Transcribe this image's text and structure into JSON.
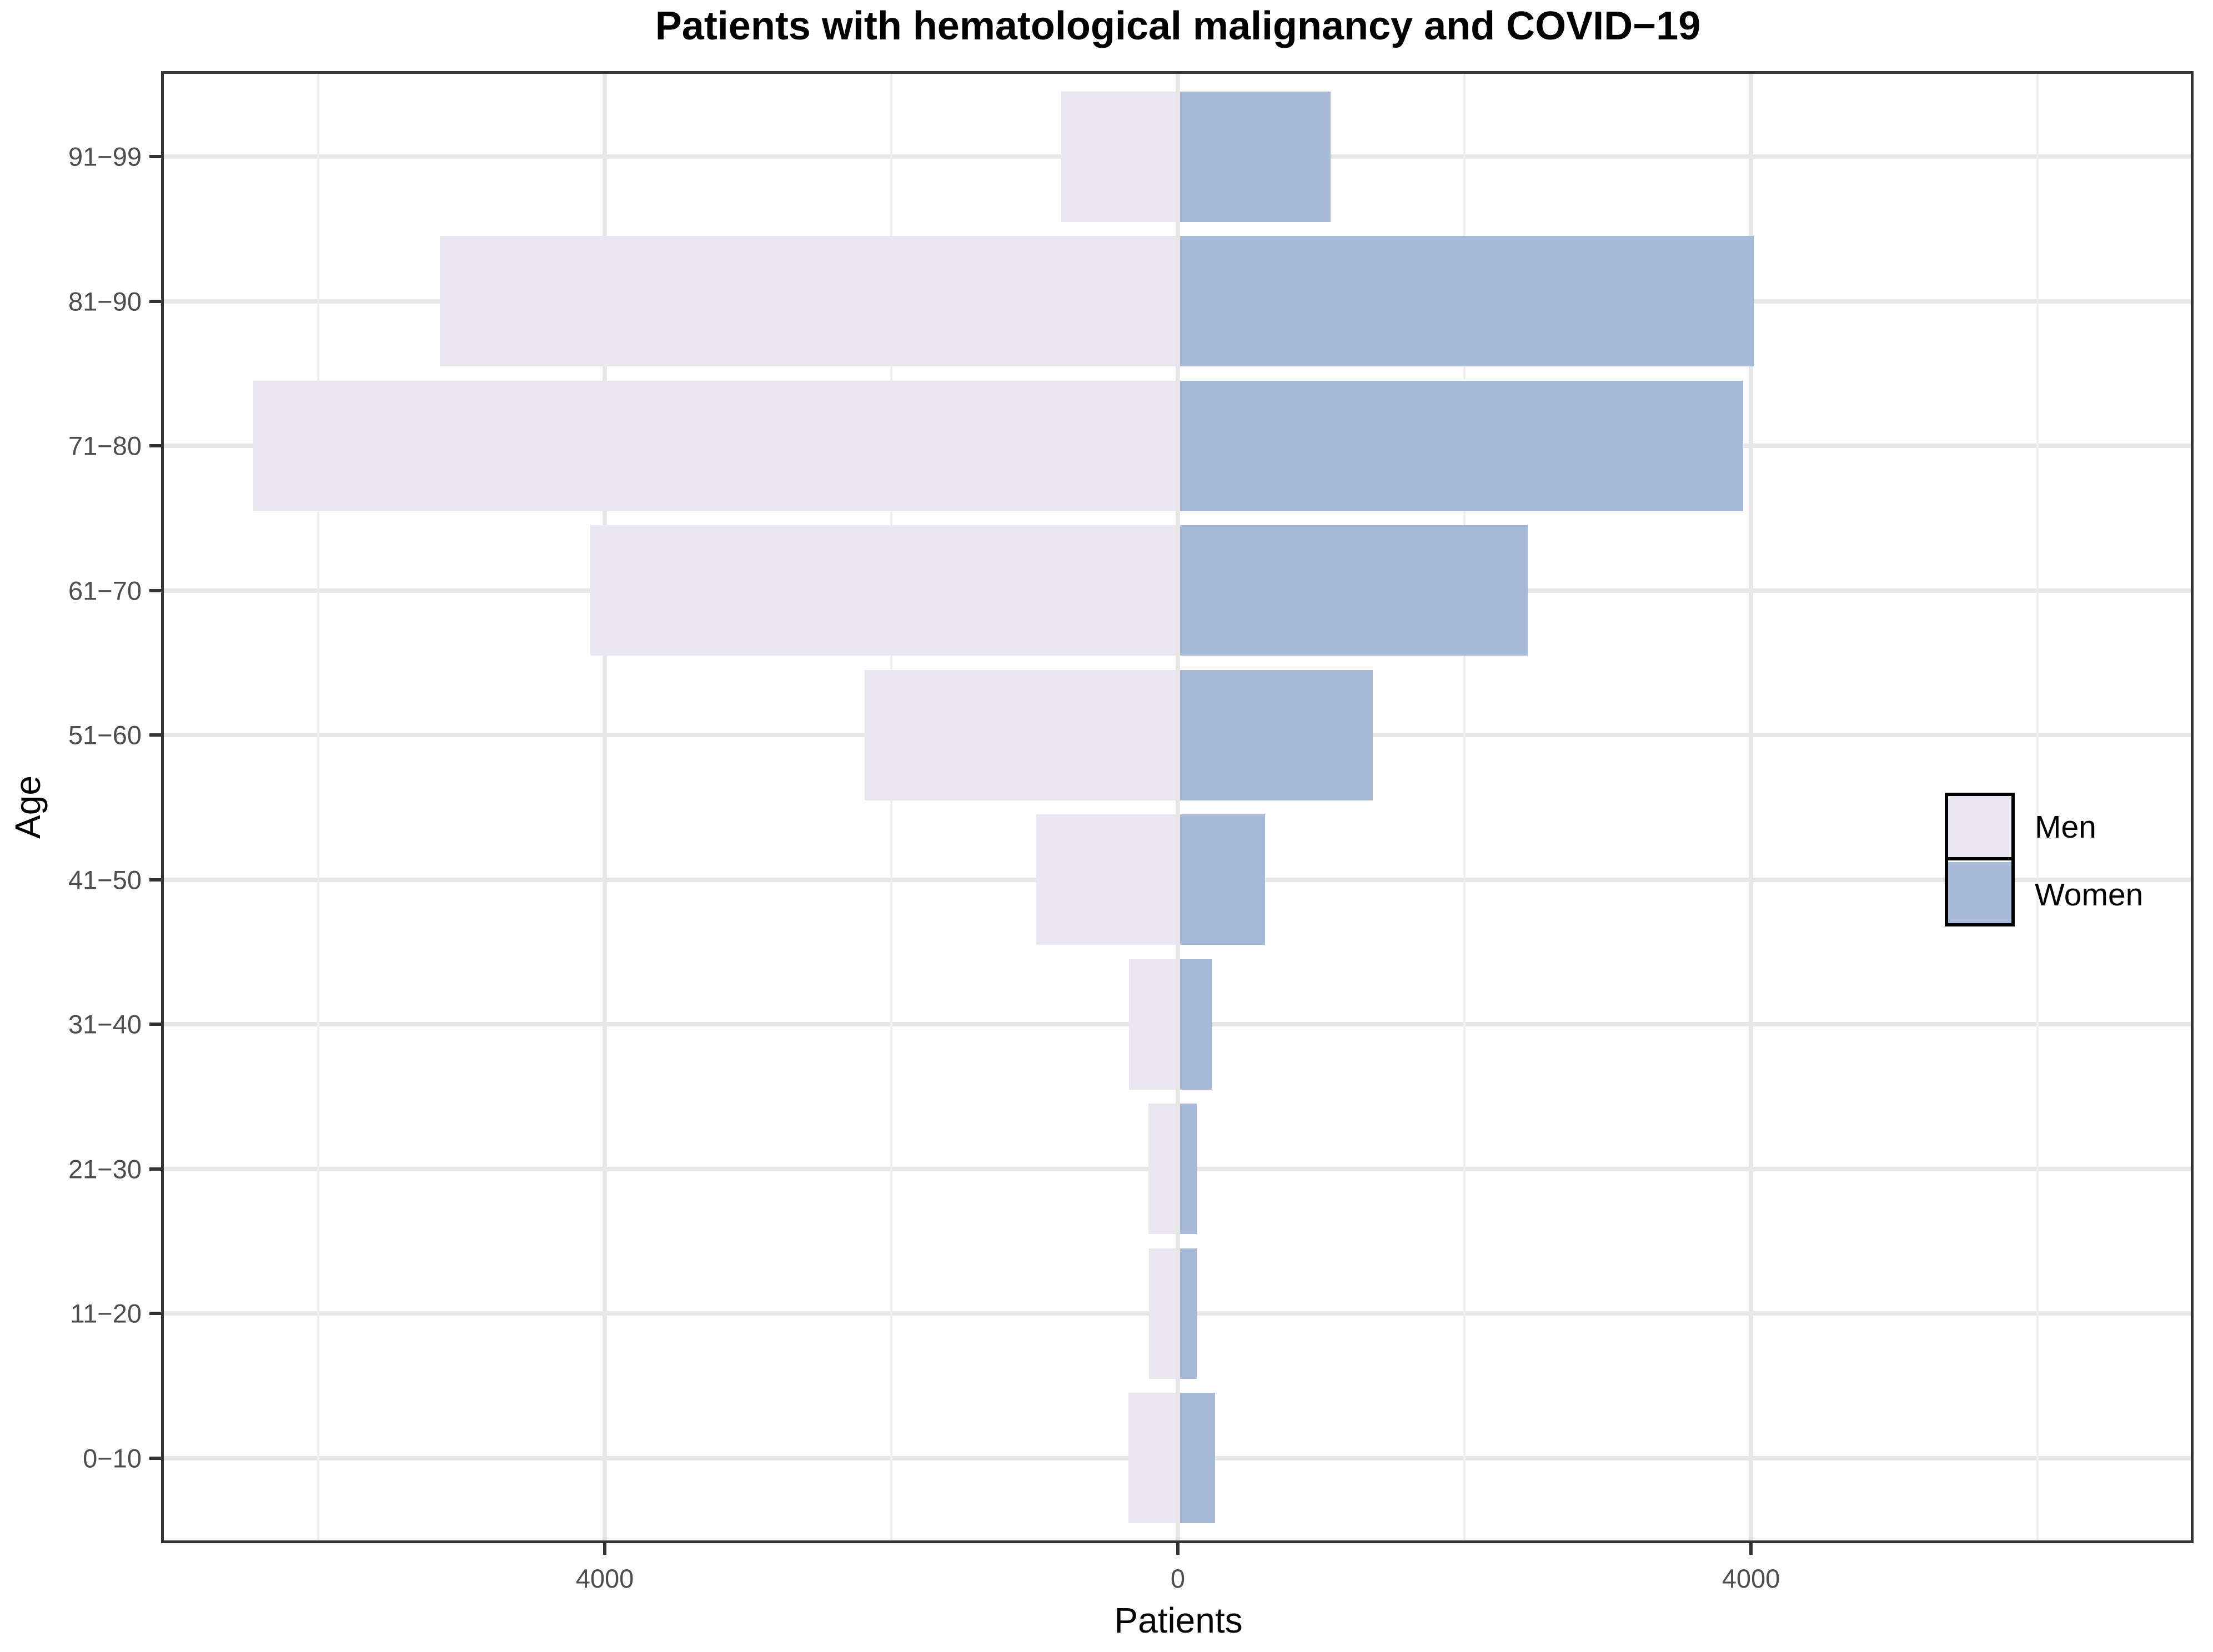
{
  "title": "Patients with hematological malignancy and COVID−19",
  "legend": {
    "items": [
      {
        "label": "Men",
        "color": "#EAE6F2"
      },
      {
        "label": "Women",
        "color": "#A7BBD8"
      }
    ]
  },
  "chart_data": {
    "type": "bar",
    "subtype": "population-pyramid",
    "title": "Patients with hematological malignancy and COVID−19",
    "xlabel": "Patients",
    "ylabel": "Age",
    "orientation": "horizontal",
    "categories_top_to_bottom": [
      "91−99",
      "81−90",
      "71−80",
      "61−70",
      "51−60",
      "41−50",
      "31−40",
      "21−30",
      "11−20",
      "0−10"
    ],
    "series": [
      {
        "name": "Men",
        "side": "left",
        "color": "#EAE6F2",
        "values": [
          815,
          5150,
          6455,
          4100,
          2185,
          990,
          340,
          205,
          200,
          345
        ]
      },
      {
        "name": "Women",
        "side": "right",
        "color": "#A7BBD8",
        "values": [
          1065,
          4020,
          3945,
          2440,
          1360,
          610,
          235,
          130,
          130,
          260
        ]
      }
    ],
    "x_axis": {
      "ticks": [
        -4000,
        0,
        4000
      ],
      "tick_labels": [
        "4000",
        "0",
        "4000"
      ],
      "minor_gridlines": [
        -6000,
        -2000,
        2000,
        6000
      ],
      "xlim": [
        -7100,
        7100
      ],
      "note": "left side shows Men counts as magnitudes, right side Women counts"
    },
    "grid": true,
    "legend_position": "right"
  },
  "colors": {
    "men": "#EAE6F2",
    "women": "#A7BBD8",
    "grid_major": "#E7E7E7",
    "grid_minor": "#EFEFEF",
    "panel_border": "#333333",
    "tick_mark": "#333333",
    "tick_text": "#4D4D4D",
    "text": "#000000",
    "background": "#FFFFFF"
  }
}
